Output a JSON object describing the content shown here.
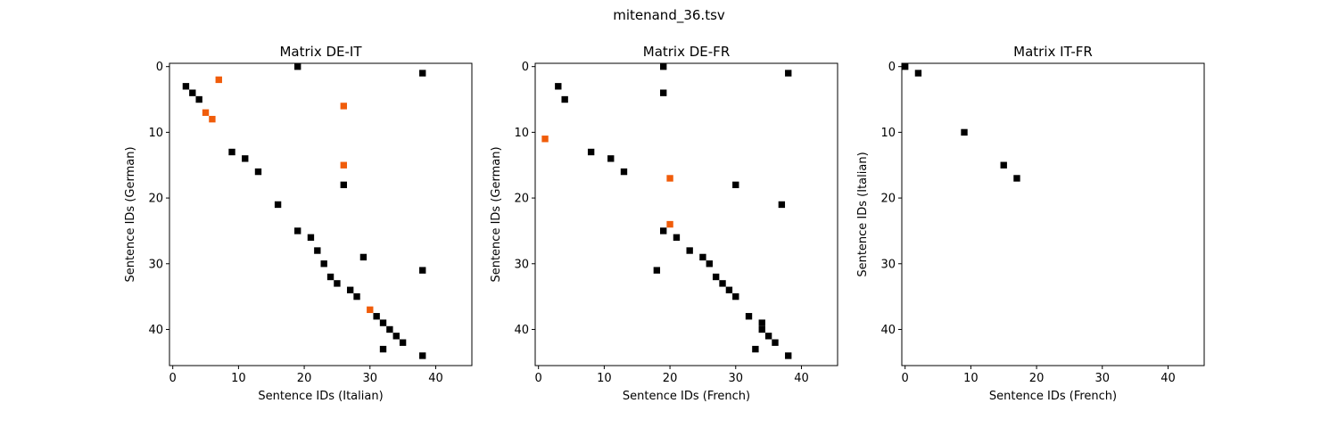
{
  "figure": {
    "suptitle": "mitenand_36.tsv"
  },
  "colors": {
    "match": "#000000",
    "mismatch": "#f05c0a",
    "background": "#ffffff"
  },
  "chart_data": [
    {
      "type": "heatmap",
      "title": "Matrix DE-IT",
      "xlabel": "Sentence IDs (Italian)",
      "ylabel": "Sentence IDs (German)",
      "xlim": [
        -0.5,
        45.5
      ],
      "ylim": [
        45.5,
        -0.5
      ],
      "xticks": [
        0,
        10,
        20,
        30,
        40
      ],
      "yticks": [
        0,
        10,
        20,
        30,
        40
      ],
      "grid": false,
      "series": [
        {
          "color": "#000000",
          "points": [
            [
              19,
              0
            ],
            [
              38,
              1
            ],
            [
              2,
              3
            ],
            [
              3,
              4
            ],
            [
              4,
              5
            ],
            [
              9,
              13
            ],
            [
              11,
              14
            ],
            [
              13,
              16
            ],
            [
              26,
              18
            ],
            [
              16,
              21
            ],
            [
              19,
              25
            ],
            [
              21,
              26
            ],
            [
              22,
              28
            ],
            [
              29,
              29
            ],
            [
              23,
              30
            ],
            [
              38,
              31
            ],
            [
              24,
              32
            ],
            [
              25,
              33
            ],
            [
              27,
              34
            ],
            [
              28,
              35
            ],
            [
              31,
              38
            ],
            [
              32,
              39
            ],
            [
              33,
              40
            ],
            [
              34,
              41
            ],
            [
              35,
              42
            ],
            [
              32,
              43
            ],
            [
              38,
              44
            ]
          ]
        },
        {
          "color": "#f05c0a",
          "points": [
            [
              7,
              2
            ],
            [
              26,
              6
            ],
            [
              5,
              7
            ],
            [
              6,
              8
            ],
            [
              26,
              15
            ],
            [
              30,
              37
            ]
          ]
        }
      ]
    },
    {
      "type": "heatmap",
      "title": "Matrix DE-FR",
      "xlabel": "Sentence IDs (French)",
      "ylabel": "Sentence IDs (German)",
      "xlim": [
        -0.5,
        45.5
      ],
      "ylim": [
        45.5,
        -0.5
      ],
      "xticks": [
        0,
        10,
        20,
        30,
        40
      ],
      "yticks": [
        0,
        10,
        20,
        30,
        40
      ],
      "grid": false,
      "series": [
        {
          "color": "#000000",
          "points": [
            [
              19,
              0
            ],
            [
              38,
              1
            ],
            [
              3,
              3
            ],
            [
              19,
              4
            ],
            [
              4,
              5
            ],
            [
              8,
              13
            ],
            [
              11,
              14
            ],
            [
              13,
              16
            ],
            [
              30,
              18
            ],
            [
              37,
              21
            ],
            [
              19,
              25
            ],
            [
              21,
              26
            ],
            [
              23,
              28
            ],
            [
              25,
              29
            ],
            [
              26,
              30
            ],
            [
              18,
              31
            ],
            [
              27,
              32
            ],
            [
              28,
              33
            ],
            [
              29,
              34
            ],
            [
              30,
              35
            ],
            [
              32,
              38
            ],
            [
              34,
              39
            ],
            [
              34,
              40
            ],
            [
              35,
              41
            ],
            [
              36,
              42
            ],
            [
              33,
              43
            ],
            [
              38,
              44
            ]
          ]
        },
        {
          "color": "#f05c0a",
          "points": [
            [
              1,
              11
            ],
            [
              20,
              17
            ],
            [
              20,
              24
            ]
          ]
        }
      ]
    },
    {
      "type": "heatmap",
      "title": "Matrix IT-FR",
      "xlabel": "Sentence IDs (French)",
      "ylabel": "Sentence IDs (Italian)",
      "xlim": [
        -0.5,
        45.5
      ],
      "ylim": [
        45.5,
        -0.5
      ],
      "xticks": [
        0,
        10,
        20,
        30,
        40
      ],
      "yticks": [
        0,
        10,
        20,
        30,
        40
      ],
      "grid": false,
      "series": [
        {
          "color": "#000000",
          "points": [
            [
              0,
              0
            ],
            [
              2,
              1
            ],
            [
              9,
              10
            ],
            [
              15,
              15
            ],
            [
              17,
              17
            ]
          ]
        }
      ]
    }
  ]
}
